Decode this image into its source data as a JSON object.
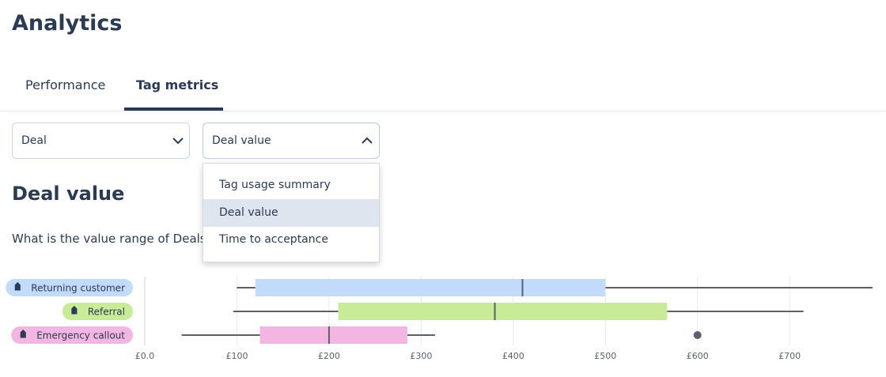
{
  "header": {
    "title": "Analytics"
  },
  "tabs": [
    "Performance",
    "Tag metrics"
  ],
  "dropdowns": [
    "Deal",
    "Deal value"
  ],
  "menu": {
    "items": [
      "Tag usage summary",
      "Deal value",
      "Time to acceptance"
    ]
  },
  "section": {
    "title": "Deal value",
    "question": "What is the value range of Deals"
  },
  "chart_data": {
    "type": "box",
    "categories": [
      "Returning customer",
      "Referral",
      "Emergency callout"
    ],
    "series": [
      {
        "name": "Returning customer",
        "color": "#c3dbfa",
        "min": 100,
        "q1": 120,
        "median": 410,
        "q3": 500,
        "max": 790,
        "outliers": []
      },
      {
        "name": "Referral",
        "color": "#c8eb97",
        "min": 96,
        "q1": 210,
        "median": 380,
        "q3": 567,
        "max": 715,
        "outliers": []
      },
      {
        "name": "Emergency callout",
        "color": "#f3b6e2",
        "min": 40,
        "q1": 125,
        "median": 200,
        "q3": 285,
        "max": 315,
        "outliers": [
          600
        ]
      }
    ],
    "xlim": [
      0,
      790
    ],
    "xticks": [
      {
        "value": 0,
        "label": "£0.0"
      },
      {
        "value": 100,
        "label": "£100"
      },
      {
        "value": 200,
        "label": "£200"
      },
      {
        "value": 300,
        "label": "£300"
      },
      {
        "value": 400,
        "label": "£400"
      },
      {
        "value": 500,
        "label": "£500"
      },
      {
        "value": 600,
        "label": "£600"
      },
      {
        "value": 700,
        "label": "£700"
      }
    ],
    "grid": true
  }
}
